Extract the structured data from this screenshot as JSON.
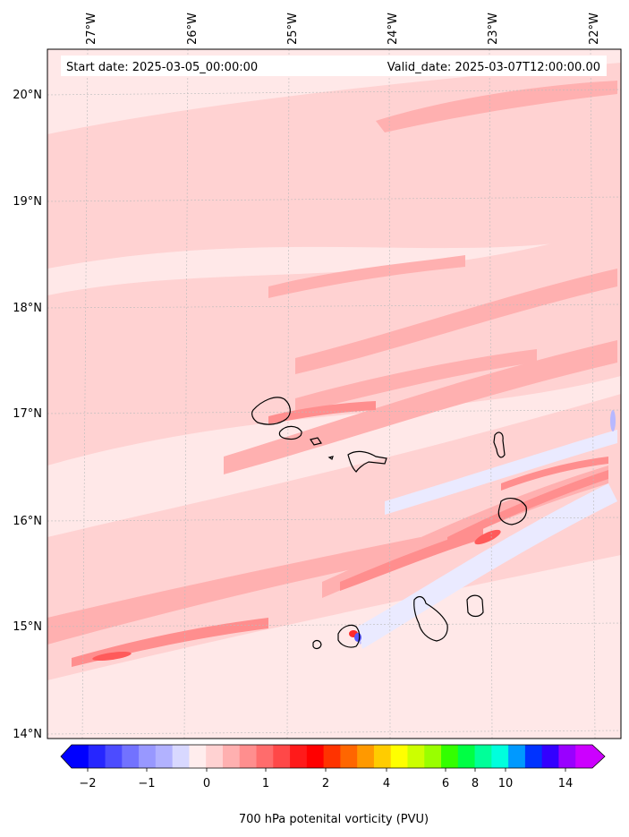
{
  "header": {
    "start_text": "Start date: 2025-03-05_00:00:00",
    "valid_text": "Valid_date: 2025-03-07T12:00:00.00"
  },
  "map": {
    "lon_labels": [
      "27°W",
      "26°W",
      "25°W",
      "24°W",
      "23°W",
      "22°W"
    ],
    "lat_labels": [
      "20°N",
      "19°N",
      "18°N",
      "17°N",
      "16°N",
      "15°N",
      "14°N"
    ],
    "lon_values": [
      -27,
      -26,
      -25,
      -24,
      -23,
      -22
    ],
    "lat_values": [
      20,
      19,
      18,
      17,
      16,
      15,
      14
    ],
    "extent": {
      "lon_min": -27.35,
      "lon_max": -21.65,
      "lat_min": 13.95,
      "lat_max": 20.4
    }
  },
  "colorbar": {
    "title": "700 hPa potenital vorticity (PVU)",
    "tick_labels": [
      "−2",
      "−1",
      "0",
      "1",
      "2",
      "4",
      "6",
      "8",
      "10",
      "14"
    ],
    "colors": [
      "#0000ff",
      "#2626ff",
      "#4c4cff",
      "#7272ff",
      "#9898ff",
      "#b2b2ff",
      "#d8d8ff",
      "#ffeded",
      "#ffd2d2",
      "#ffb0b0",
      "#ff8e8e",
      "#ff6c6c",
      "#ff4848",
      "#ff1a1a",
      "#ff0000",
      "#ff3300",
      "#ff6600",
      "#ff9900",
      "#ffcc00",
      "#ffff00",
      "#ccff00",
      "#99ff00",
      "#33ff00",
      "#00ff44",
      "#00ff99",
      "#00ffdd",
      "#0099ff",
      "#0033ff",
      "#3300ff",
      "#9900ff",
      "#cc00ff"
    ],
    "under_color": "#0000ff",
    "over_color": "#cc00ff"
  },
  "palette": {
    "background": "#ffe8e8",
    "light": "#ffd2d2",
    "medium": "#ffb0b0",
    "strong": "#ff8e8e",
    "stronger": "#ff5a5a",
    "neg_light": "#eaeaff",
    "neg_medium": "#b8b8ff",
    "neg_strong": "#5a5aff",
    "coast": "#000000"
  }
}
